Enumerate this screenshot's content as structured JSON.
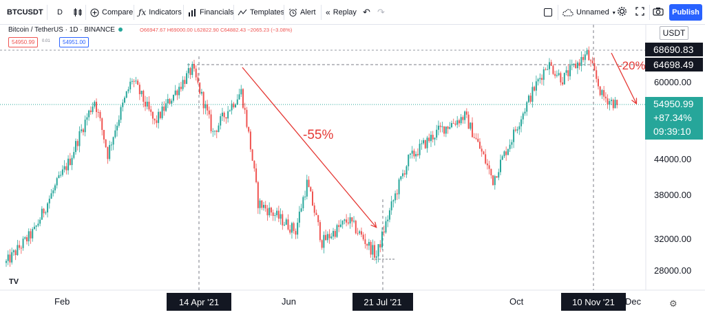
{
  "toolbar": {
    "symbol": "BTCUSDT",
    "interval": "D",
    "compare": "Compare",
    "indicators": "Indicators",
    "financials": "Financials",
    "templates": "Templates",
    "alert": "Alert",
    "replay": "Replay",
    "layout_name": "Unnamed",
    "publish": "Publish"
  },
  "legend": {
    "title": "Bitcoin / TetherUS · 1D · BINANCE",
    "ohlc": "O66947.67 H69000.00 L62822.90 C64882.43 −2065.23 (−3.08%)",
    "sell_price": "54950.99",
    "spread": "0.01",
    "buy_price": "54951.00"
  },
  "price_axis": {
    "currency": "USDT",
    "ticks": [
      "60000.00",
      "44000.00",
      "38000.00",
      "32000.00",
      "28000.00"
    ],
    "high_label": "68690.83",
    "level_label": "64698.49",
    "last_price": "54950.99",
    "change_pct": "+87.34%",
    "countdown": "09:39:10"
  },
  "time_axis": {
    "ticks": [
      "Feb",
      "Jun",
      "Oct",
      "Dec"
    ],
    "highlights": [
      "14 Apr '21",
      "21 Jul '21",
      "10 Nov '21"
    ]
  },
  "annotations": {
    "drop1": "-55%",
    "drop2": "-20%"
  },
  "colors": {
    "up": "#26a69a",
    "down": "#ef5350",
    "arrow": "#e53935",
    "accent": "#2962ff"
  },
  "chart_data": {
    "type": "candlestick",
    "symbol": "BTCUSDT",
    "interval": "1D",
    "exchange": "BINANCE",
    "y_scale": "log",
    "ylim": [
      25000,
      75000
    ],
    "x_ticks": [
      "Feb",
      "Jun",
      "Oct",
      "Dec"
    ],
    "close_path": [
      {
        "date": "2021-01-05",
        "close": 29000
      },
      {
        "date": "2021-01-20",
        "close": 33000
      },
      {
        "date": "2021-02-08",
        "close": 44000
      },
      {
        "date": "2021-02-21",
        "close": 56000
      },
      {
        "date": "2021-02-28",
        "close": 45000
      },
      {
        "date": "2021-03-13",
        "close": 61000
      },
      {
        "date": "2021-03-25",
        "close": 51000
      },
      {
        "date": "2021-04-14",
        "close": 63500
      },
      {
        "date": "2021-04-25",
        "close": 49000
      },
      {
        "date": "2021-05-10",
        "close": 58000
      },
      {
        "date": "2021-05-19",
        "close": 37000
      },
      {
        "date": "2021-06-08",
        "close": 33000
      },
      {
        "date": "2021-06-14",
        "close": 40000
      },
      {
        "date": "2021-06-22",
        "close": 31500
      },
      {
        "date": "2021-07-06",
        "close": 34500
      },
      {
        "date": "2021-07-21",
        "close": 29800
      },
      {
        "date": "2021-08-07",
        "close": 44000
      },
      {
        "date": "2021-08-23",
        "close": 49500
      },
      {
        "date": "2021-09-06",
        "close": 52500
      },
      {
        "date": "2021-09-21",
        "close": 40500
      },
      {
        "date": "2021-10-01",
        "close": 48000
      },
      {
        "date": "2021-10-20",
        "close": 65000
      },
      {
        "date": "2021-10-28",
        "close": 61000
      },
      {
        "date": "2021-11-10",
        "close": 67500
      },
      {
        "date": "2021-11-18",
        "close": 57000
      },
      {
        "date": "2021-11-26",
        "close": 54950.99
      }
    ],
    "levels": [
      68690.83,
      64698.49,
      54950.99
    ]
  }
}
